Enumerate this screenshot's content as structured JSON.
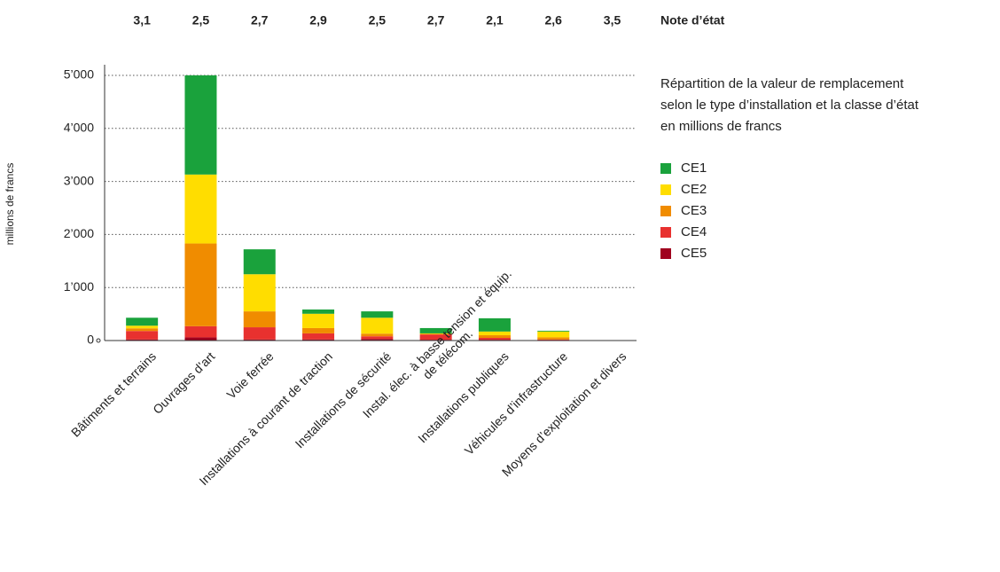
{
  "chart_data": {
    "type": "stacked_bar",
    "y_label": "millions de francs",
    "legend_title": [
      "Répartition de la valeur de remplacement",
      "selon le type d’installation et la classe d’état",
      "en millions de francs"
    ],
    "notes_title": "Note d’état",
    "notes": [
      "3,1",
      "2,5",
      "2,7",
      "2,9",
      "2,5",
      "2,7",
      "2,1",
      "2,6",
      "3,5"
    ],
    "categories": [
      "Bâtiments et terrains",
      "Ouvrages d’art",
      "Voie ferrée",
      "Installations à courant de traction",
      "Installations de sécurité",
      "Instal. élec. à basse tension et équip.\nde télécom.",
      "Installations publiques",
      "Véhicules d’infrastructure",
      "Moyens d’exploitation et divers"
    ],
    "series": [
      {
        "name": "CE5",
        "color": "#a0001e",
        "values": [
          20,
          60,
          20,
          20,
          30,
          15,
          15,
          5,
          0
        ]
      },
      {
        "name": "CE4",
        "color": "#e8312f",
        "values": [
          160,
          210,
          230,
          115,
          50,
          100,
          35,
          15,
          0
        ]
      },
      {
        "name": "CE3",
        "color": "#f08c00",
        "values": [
          50,
          1560,
          300,
          100,
          50,
          10,
          50,
          40,
          0
        ]
      },
      {
        "name": "CE2",
        "color": "#ffdd00",
        "values": [
          50,
          1300,
          700,
          270,
          300,
          10,
          70,
          110,
          0
        ]
      },
      {
        "name": "CE1",
        "color": "#1aa23c",
        "values": [
          150,
          1870,
          470,
          80,
          120,
          100,
          250,
          15,
          0
        ]
      }
    ],
    "ylim": [
      0,
      5200
    ],
    "yticks": [
      0,
      {
        "value": 1000,
        "label": "1’000"
      },
      {
        "value": 2000,
        "label": "2’000"
      },
      {
        "value": 3000,
        "label": "3’000"
      },
      {
        "value": 4000,
        "label": "4’000"
      },
      {
        "value": 5000,
        "label": "5’000"
      }
    ],
    "grid": true
  }
}
